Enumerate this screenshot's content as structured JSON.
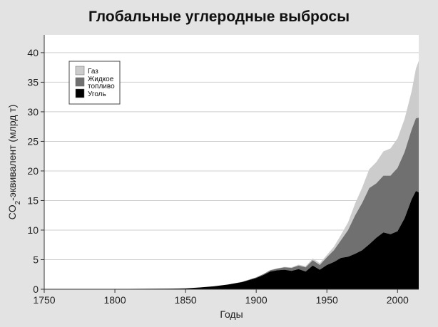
{
  "chart_data": {
    "type": "area",
    "title": "Глобальные углеродные выбросы",
    "xlabel": "Годы",
    "ylabel_parts": [
      "CO",
      "2",
      "-эквивалент (млрд т)"
    ],
    "xlim": [
      1750,
      2015
    ],
    "ylim": [
      0,
      43
    ],
    "x_ticks": [
      "1750",
      "1800",
      "1850",
      "1900",
      "1950",
      "2000"
    ],
    "y_ticks": [
      "0",
      "5",
      "10",
      "15",
      "20",
      "25",
      "30",
      "35",
      "40"
    ],
    "grid": "horizontal",
    "stacked": true,
    "legend_position": "top-left",
    "x": [
      1750,
      1800,
      1840,
      1850,
      1860,
      1870,
      1880,
      1890,
      1900,
      1905,
      1910,
      1915,
      1920,
      1925,
      1930,
      1935,
      1940,
      1945,
      1950,
      1955,
      1960,
      1965,
      1970,
      1975,
      1980,
      1985,
      1990,
      1995,
      2000,
      2005,
      2010,
      2013,
      2015
    ],
    "series": [
      {
        "name": "Уголь",
        "color": "#000000",
        "values": [
          0,
          0.05,
          0.1,
          0.15,
          0.3,
          0.5,
          0.8,
          1.2,
          1.9,
          2.4,
          3.0,
          3.2,
          3.3,
          3.1,
          3.4,
          3.0,
          4.0,
          3.3,
          4.1,
          4.6,
          5.3,
          5.5,
          6.0,
          6.6,
          7.6,
          8.7,
          9.6,
          9.3,
          9.8,
          12.0,
          15.2,
          16.6,
          16.4
        ]
      },
      {
        "name": "Жидкое топливо",
        "color": "#707070",
        "values": [
          0,
          0,
          0,
          0,
          0,
          0,
          0,
          0.05,
          0.1,
          0.15,
          0.2,
          0.3,
          0.4,
          0.5,
          0.6,
          0.7,
          0.9,
          0.8,
          1.3,
          2.0,
          3.0,
          4.5,
          6.5,
          8.0,
          9.5,
          9.2,
          9.6,
          9.9,
          10.7,
          11.2,
          11.8,
          12.3,
          12.6
        ]
      },
      {
        "name": "Газ",
        "color": "#cccccc",
        "values": [
          0,
          0,
          0,
          0,
          0,
          0,
          0,
          0,
          0.02,
          0.03,
          0.05,
          0.05,
          0.08,
          0.1,
          0.15,
          0.2,
          0.3,
          0.3,
          0.4,
          0.6,
          0.9,
          1.3,
          2.0,
          2.6,
          3.2,
          3.6,
          4.1,
          4.6,
          5.0,
          5.6,
          6.5,
          8.4,
          9.6
        ]
      }
    ],
    "legend_order": [
      "Газ",
      "Жидкое топливо",
      "Уголь"
    ],
    "colors": {
      "background": "#e3e3e3",
      "plot_background": "#ffffff",
      "grid": "#cfcfcf",
      "axis": "#333333"
    }
  }
}
